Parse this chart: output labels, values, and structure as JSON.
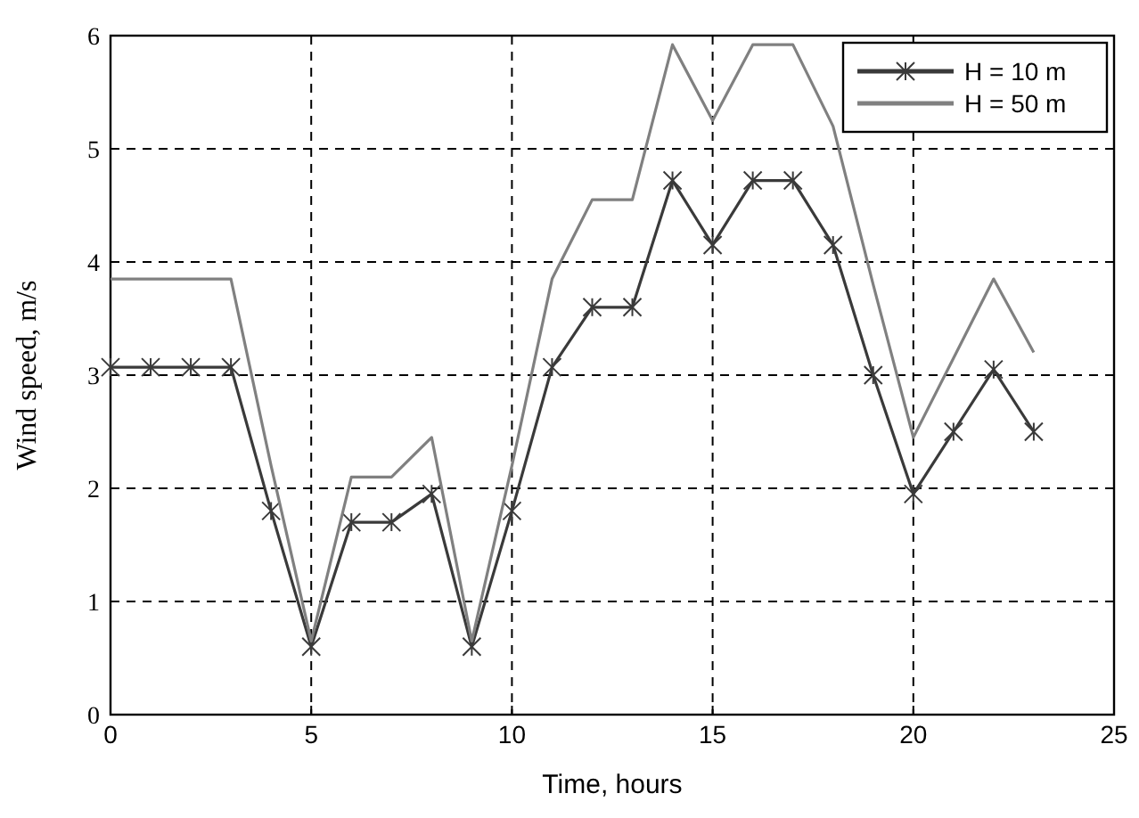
{
  "chart_data": {
    "type": "line",
    "xlabel": "Time, hours",
    "ylabel": "Wind speed, m/s",
    "x": [
      0,
      1,
      2,
      3,
      4,
      5,
      6,
      7,
      8,
      9,
      10,
      11,
      12,
      13,
      14,
      15,
      16,
      17,
      18,
      19,
      20,
      21,
      22,
      23
    ],
    "series": [
      {
        "name": "H = 10 m",
        "color": "#3a3a3a",
        "marker": "cross",
        "values": [
          3.07,
          3.07,
          3.07,
          3.07,
          1.8,
          0.6,
          1.7,
          1.7,
          1.95,
          0.6,
          1.8,
          3.07,
          3.6,
          3.6,
          4.72,
          4.15,
          4.72,
          4.72,
          4.15,
          3.0,
          1.95,
          2.5,
          3.05,
          2.5
        ]
      },
      {
        "name": "H = 50 m",
        "color": "#808080",
        "marker": "none",
        "values": [
          3.85,
          3.85,
          3.85,
          3.85,
          2.2,
          0.65,
          2.1,
          2.1,
          2.45,
          0.65,
          2.2,
          3.85,
          4.55,
          4.55,
          5.92,
          5.25,
          5.92,
          5.92,
          5.2,
          3.8,
          2.45,
          3.15,
          3.85,
          3.2
        ]
      }
    ],
    "xlim": [
      0,
      25
    ],
    "xticks": [
      0,
      5,
      10,
      15,
      20,
      25
    ],
    "ylim": [
      0,
      6
    ],
    "yticks": [
      0,
      1,
      2,
      3,
      4,
      5,
      6
    ],
    "grid": true,
    "legend": "top right",
    "line_style": "solid"
  }
}
